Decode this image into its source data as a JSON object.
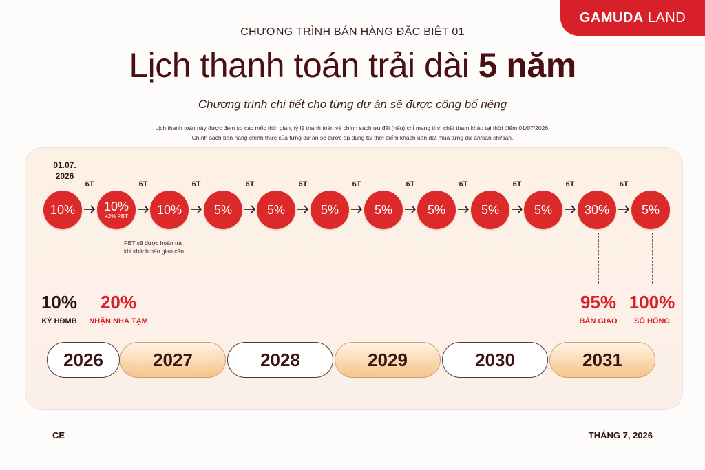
{
  "brand": {
    "bold": "GAMUDA",
    "light": "LAND"
  },
  "header": {
    "program": "CHƯƠNG TRÌNH BÁN HÀNG ĐẶC BIỆT 01",
    "title_main": "Lịch thanh toán trải dài",
    "title_bold": "5 năm",
    "subtitle": "Chương trình chi tiết cho từng dự án sẽ được công bố riêng",
    "note_line1": "Lịch thanh toán này được đem so các mốc thời gian, tỷ lệ thanh toán và chính sách ưu đãi (nếu) chỉ mang tính chất tham khảo tại thời điểm 01/07/2026.",
    "note_line2": "Chính sách bán hàng chính thức của từng dự án sẽ được áp dụng tại thời điểm khách uân đặt mua từng dự án/sản chi/sản."
  },
  "timeline": {
    "start_date_line1": "01.07.",
    "start_date_line2": "2026",
    "gap_label": "6T",
    "steps": [
      {
        "pct": "10%",
        "sub": ""
      },
      {
        "pct": "10%",
        "sub": "+2% PBT"
      },
      {
        "pct": "10%",
        "sub": ""
      },
      {
        "pct": "5%",
        "sub": ""
      },
      {
        "pct": "5%",
        "sub": ""
      },
      {
        "pct": "5%",
        "sub": ""
      },
      {
        "pct": "5%",
        "sub": ""
      },
      {
        "pct": "5%",
        "sub": ""
      },
      {
        "pct": "5%",
        "sub": ""
      },
      {
        "pct": "5%",
        "sub": ""
      },
      {
        "pct": "30%",
        "sub": ""
      },
      {
        "pct": "5%",
        "sub": ""
      }
    ],
    "pbt_note_line1": "PBT sẽ được hoàn trả",
    "pbt_note_line2": "khi khách bàn giao căn"
  },
  "milestones": [
    {
      "pct": "10%",
      "label": "KÝ HĐMB",
      "color": "dark"
    },
    {
      "pct": "20%",
      "label": "NHẬN NHÀ TẠM",
      "color": "red"
    },
    {
      "pct": "95%",
      "label": "BÀN GIAO",
      "color": "red"
    },
    {
      "pct": "100%",
      "label": "SỔ HỒNG",
      "color": "red"
    }
  ],
  "years": [
    "2026",
    "2027",
    "2028",
    "2029",
    "2030",
    "2031"
  ],
  "footer": {
    "left": "CE",
    "right": "THÁNG 7, 2026"
  },
  "colors": {
    "accent": "#d8202a",
    "circle": "#dc2a2a",
    "title": "#4a0f12"
  }
}
